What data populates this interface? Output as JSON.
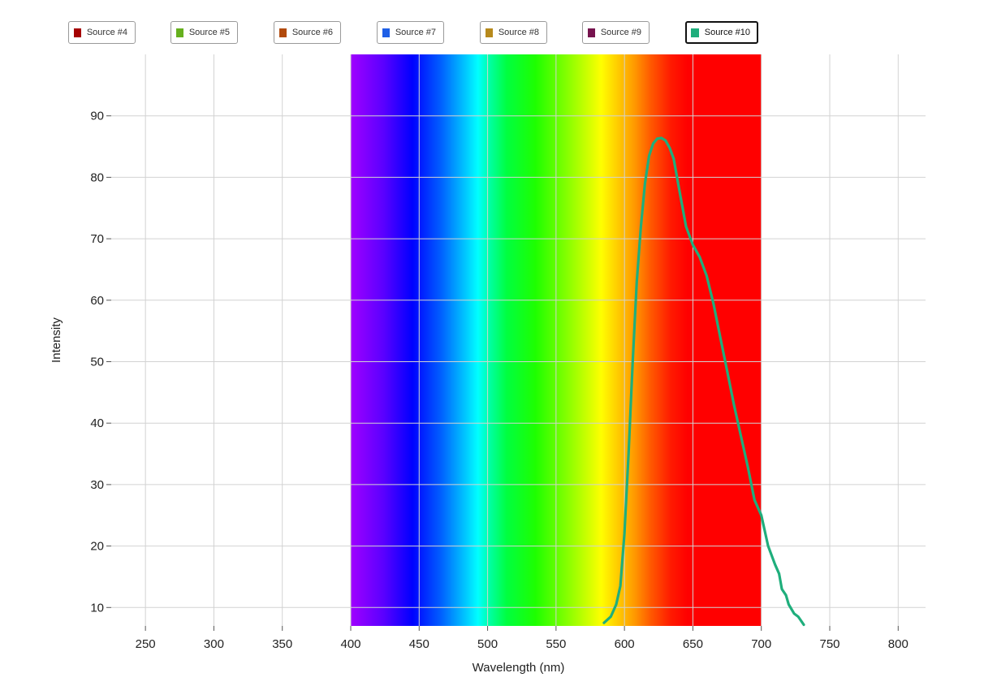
{
  "legend": {
    "items": [
      {
        "label": "Source #4",
        "color": "#a50000",
        "active": false
      },
      {
        "label": "Source #5",
        "color": "#66b01e",
        "active": false
      },
      {
        "label": "Source #6",
        "color": "#b24a0c",
        "active": false
      },
      {
        "label": "Source #7",
        "color": "#1f5fe6",
        "active": false
      },
      {
        "label": "Source #8",
        "color": "#b78a1c",
        "active": false
      },
      {
        "label": "Source #9",
        "color": "#76134e",
        "active": false
      },
      {
        "label": "Source #10",
        "color": "#1fae7c",
        "active": true
      }
    ]
  },
  "chart_data": {
    "type": "line",
    "xlabel": "Wavelength (nm)",
    "ylabel": "Intensity",
    "xlim": [
      225,
      820
    ],
    "ylim": [
      7,
      100
    ],
    "xticks": [
      250,
      300,
      350,
      400,
      450,
      500,
      550,
      600,
      650,
      700,
      750,
      800
    ],
    "yticks": [
      10,
      20,
      30,
      40,
      50,
      60,
      70,
      80,
      90
    ],
    "grid": true,
    "spectrum_band": {
      "start": 400,
      "end": 700
    },
    "series": [
      {
        "name": "Source #10",
        "color": "#1fae7c",
        "x": [
          585,
          590,
          594,
          597,
          600,
          603,
          606,
          609,
          612,
          615,
          618,
          621,
          624,
          627,
          630,
          633,
          636,
          640,
          645,
          650,
          655,
          660,
          665,
          670,
          675,
          680,
          685,
          690,
          695,
          700,
          705,
          710,
          713,
          715,
          718,
          720,
          724,
          727,
          731
        ],
        "y": [
          7.5,
          8.5,
          10.5,
          13.5,
          22,
          35,
          50,
          63,
          72,
          79,
          83.5,
          85.5,
          86.3,
          86.4,
          86,
          84.8,
          83,
          78,
          72,
          69,
          67,
          64,
          59.5,
          54,
          48.5,
          43,
          38,
          33,
          27.5,
          25,
          20,
          17,
          15.5,
          13,
          12,
          10.5,
          9,
          8.5,
          7.2
        ]
      }
    ]
  }
}
